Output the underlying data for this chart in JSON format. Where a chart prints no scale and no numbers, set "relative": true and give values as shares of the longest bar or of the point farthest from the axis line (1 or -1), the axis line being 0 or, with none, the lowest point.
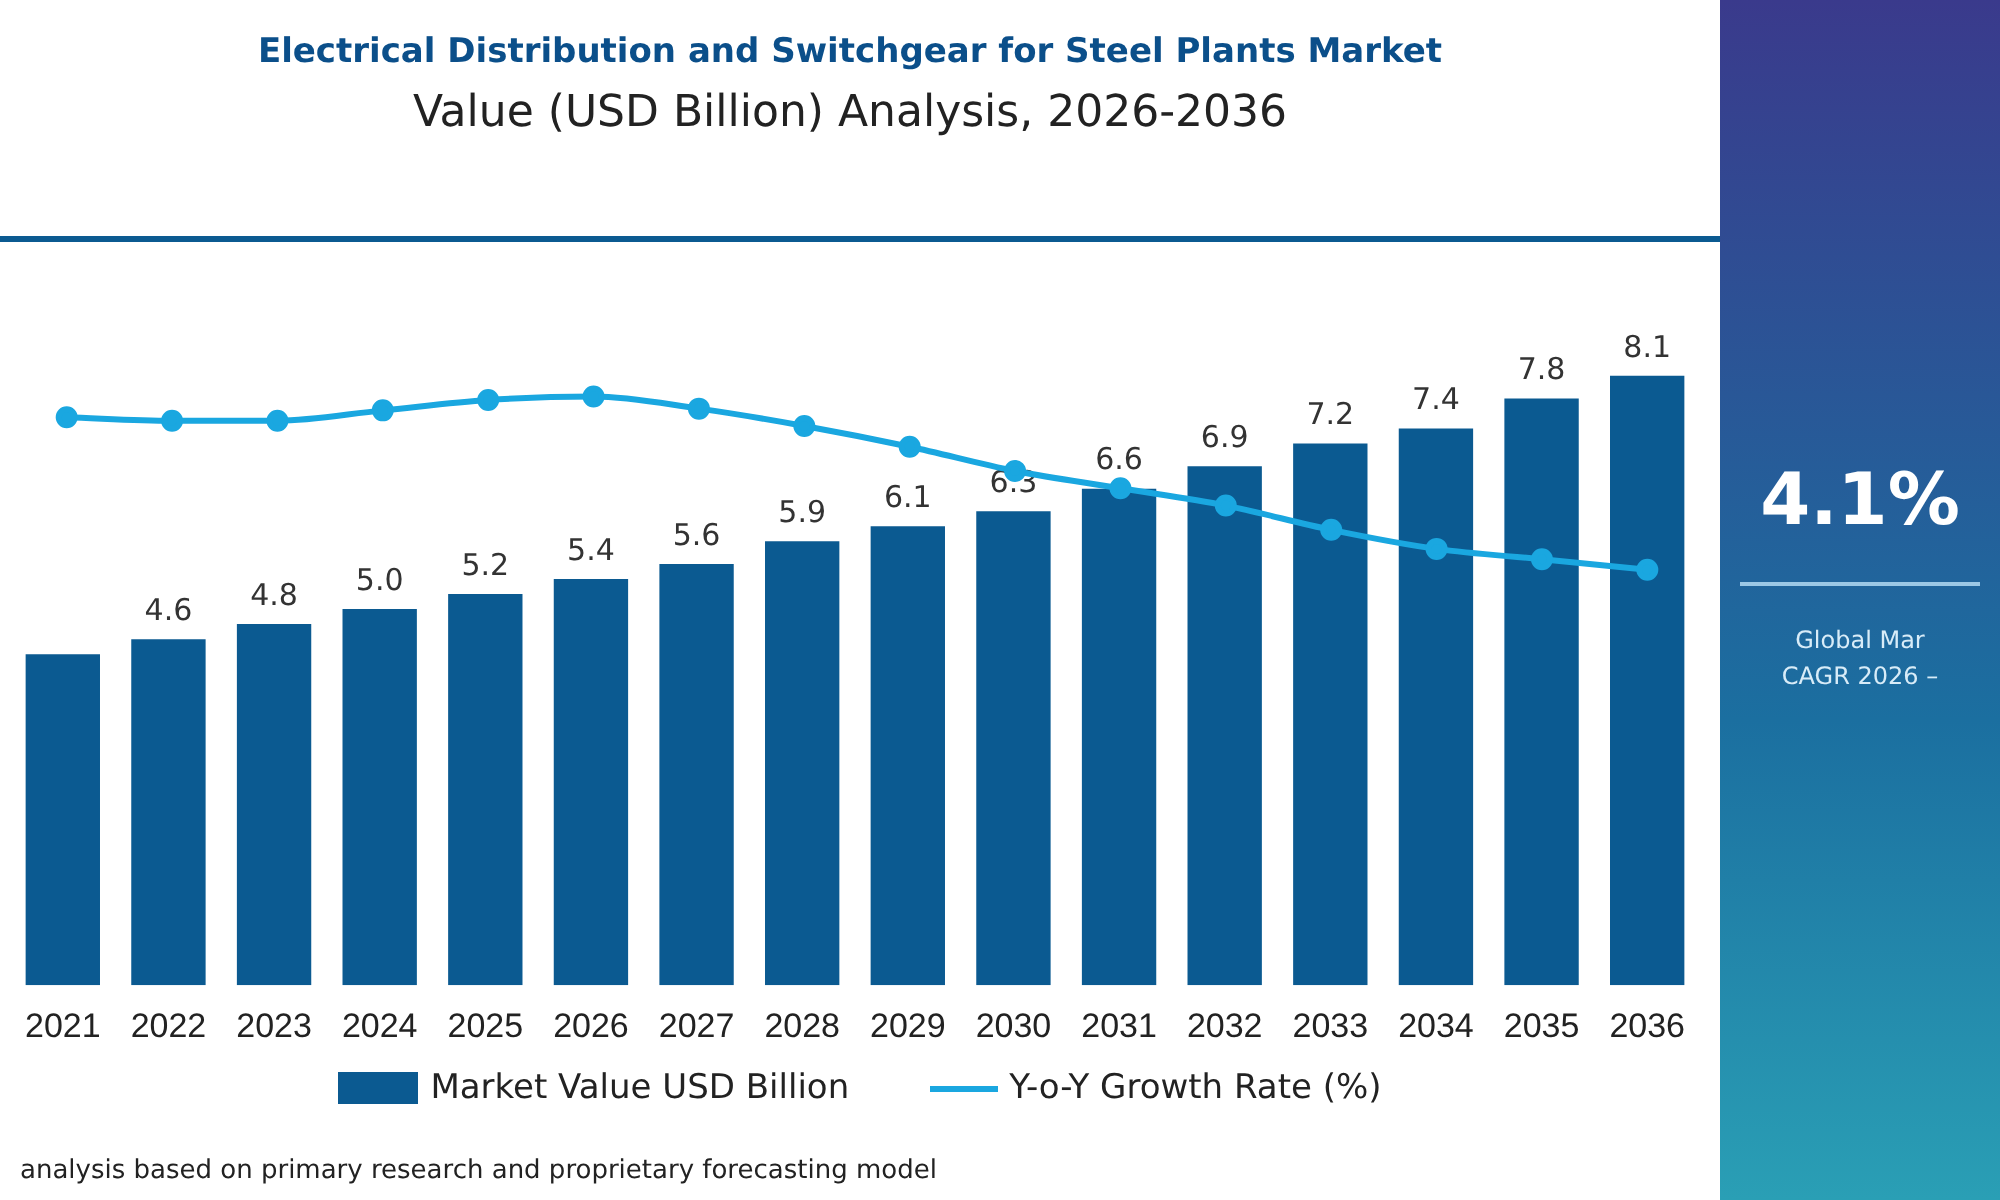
{
  "chart_data": [
    {
      "type": "bar",
      "title": "Electrical Distribution and Switchgear for Steel Plants Market",
      "subtitle": "Value (USD Billion) Analysis, 2026-2036",
      "categories": [
        "2021",
        "2022",
        "2023",
        "2024",
        "2025",
        "2026",
        "2027",
        "2028",
        "2029",
        "2030",
        "2031",
        "2032",
        "2033",
        "2034",
        "2035",
        "2036"
      ],
      "series": [
        {
          "name": "Market Value USD Billion",
          "color": "#0b5a91",
          "values": [
            4.4,
            4.6,
            4.8,
            5.0,
            5.2,
            5.4,
            5.6,
            5.9,
            6.1,
            6.3,
            6.6,
            6.9,
            7.2,
            7.4,
            7.8,
            8.1
          ],
          "value_labels": [
            null,
            "4.6",
            "4.8",
            "5.0",
            "5.2",
            "5.4",
            "5.6",
            "5.9",
            "6.1",
            "6.3",
            "6.6",
            "6.9",
            "7.2",
            "7.4",
            "7.8",
            "8.1"
          ]
        }
      ],
      "legend": "bottom",
      "annotations": [
        "4.1%",
        "Global Mar",
        "CAGR 2026 –",
        "analysis based on primary research and proprietary forecasting model"
      ]
    },
    {
      "type": "line",
      "relative": true,
      "tick_labels": false,
      "categories": [
        "2021",
        "2022",
        "2023",
        "2024",
        "2025",
        "2026",
        "2027",
        "2028",
        "2029",
        "2030",
        "2031",
        "2032",
        "2033",
        "2034",
        "2035",
        "2036"
      ],
      "series": [
        {
          "name": "Y-o-Y Growth Rate (%)",
          "color": "#1aa7e0",
          "values": [
            0.88,
            0.86,
            0.86,
            0.92,
            0.98,
            1,
            0.93,
            0.83,
            0.71,
            0.57,
            0.47,
            0.37,
            0.23,
            0.12,
            0.06,
            0
          ]
        }
      ],
      "marker": "circle",
      "legend": "bottom"
    }
  ]
}
